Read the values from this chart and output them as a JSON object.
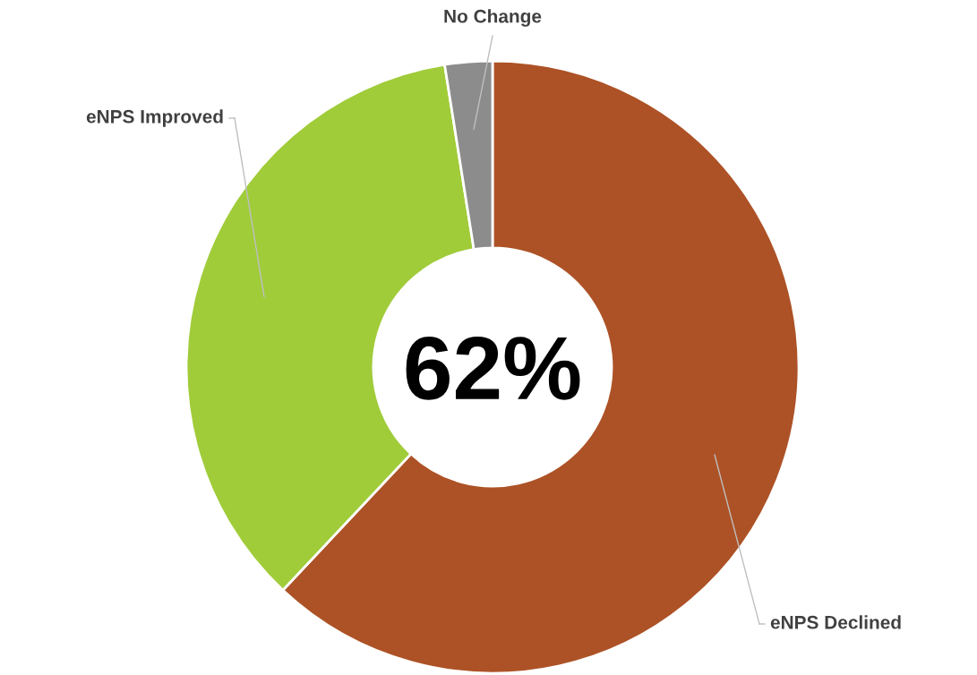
{
  "chart_data": {
    "type": "donut",
    "categories": [
      "eNPS Declined",
      "eNPS Improved",
      "No Change"
    ],
    "values": [
      62,
      35.5,
      2.5
    ],
    "colors": [
      "#ad5226",
      "#a0cc3a",
      "#8c8c8c"
    ],
    "annotations": [
      "62%"
    ],
    "legend": false
  }
}
